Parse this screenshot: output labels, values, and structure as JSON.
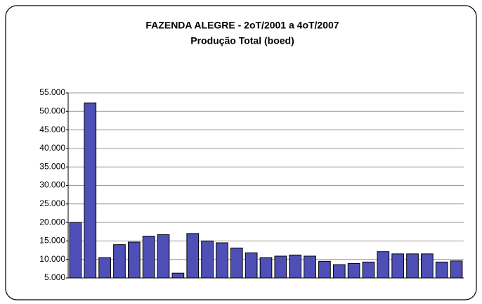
{
  "chart_data": {
    "type": "bar",
    "title": "FAZENDA ALEGRE - 2oT/2001 a 4oT/2007",
    "subtitle": "Produção Total (boed)",
    "values": [
      20000,
      52300,
      10500,
      14000,
      14700,
      16300,
      16700,
      6300,
      17000,
      15000,
      14500,
      13100,
      11800,
      10500,
      10900,
      11200,
      10900,
      9500,
      8600,
      8900,
      9300,
      12100,
      11500,
      11500,
      11500,
      9300,
      9600
    ],
    "color": "#4f4fb8",
    "ylim": [
      5000,
      55000
    ],
    "yticks": [
      {
        "value": 5000,
        "label": "5.000"
      },
      {
        "value": 10000,
        "label": "10.000"
      },
      {
        "value": 15000,
        "label": "15.000"
      },
      {
        "value": 20000,
        "label": "20.000"
      },
      {
        "value": 25000,
        "label": "25.000"
      },
      {
        "value": 30000,
        "label": "30.000"
      },
      {
        "value": 35000,
        "label": "35.000"
      },
      {
        "value": 40000,
        "label": "40.000"
      },
      {
        "value": 45000,
        "label": "45.000"
      },
      {
        "value": 50000,
        "label": "50.000"
      },
      {
        "value": 55000,
        "label": "55.000"
      }
    ],
    "grid": true
  }
}
